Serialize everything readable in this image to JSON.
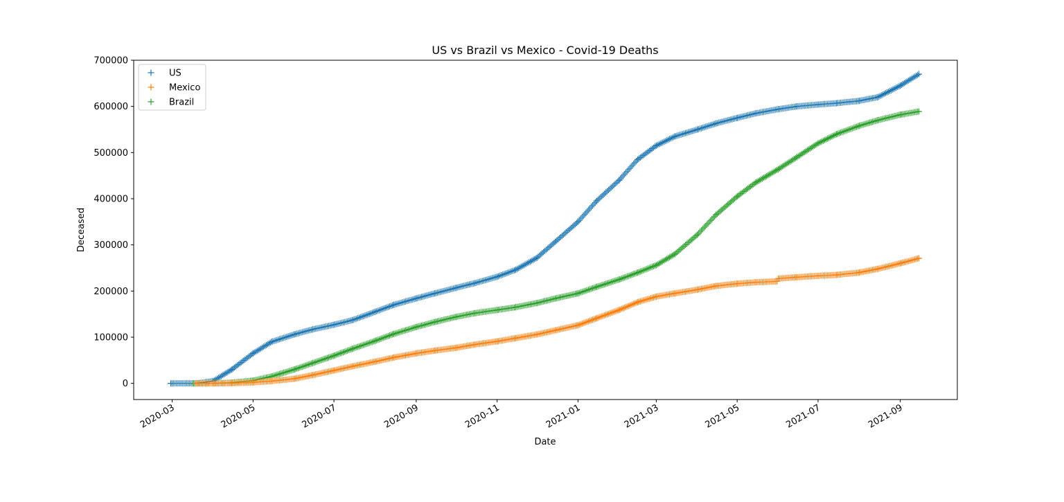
{
  "chart_data": {
    "type": "scatter",
    "marker": "+",
    "title": "US vs Brazil vs Mexico - Covid-19 Deaths",
    "xlabel": "Date",
    "ylabel": "Deceased",
    "x_start": "2020-02-29",
    "x_end": "2021-09-15",
    "xlim": [
      "2020-02-01",
      "2021-10-14"
    ],
    "ylim": [
      -35000,
      700000
    ],
    "x_ticks": [
      "2020-03",
      "2020-05",
      "2020-07",
      "2020-09",
      "2020-11",
      "2021-01",
      "2021-03",
      "2021-05",
      "2021-07",
      "2021-09"
    ],
    "y_ticks": [
      0,
      100000,
      200000,
      300000,
      400000,
      500000,
      600000,
      700000
    ],
    "y_tick_labels": [
      "0",
      "100000",
      "200000",
      "300000",
      "400000",
      "500000",
      "600000",
      "700000"
    ],
    "grid": false,
    "legend_position": "top-left",
    "series": [
      {
        "name": "US",
        "color": "#1f77b4",
        "points": [
          [
            "2020-02-29",
            1
          ],
          [
            "2020-03-20",
            200
          ],
          [
            "2020-04-01",
            5000
          ],
          [
            "2020-04-15",
            30000
          ],
          [
            "2020-05-01",
            65000
          ],
          [
            "2020-05-15",
            90000
          ],
          [
            "2020-06-01",
            106000
          ],
          [
            "2020-06-15",
            117000
          ],
          [
            "2020-07-01",
            127000
          ],
          [
            "2020-07-15",
            137000
          ],
          [
            "2020-08-01",
            155000
          ],
          [
            "2020-08-15",
            170000
          ],
          [
            "2020-09-01",
            184000
          ],
          [
            "2020-09-15",
            195000
          ],
          [
            "2020-10-01",
            207000
          ],
          [
            "2020-10-15",
            217000
          ],
          [
            "2020-11-01",
            231000
          ],
          [
            "2020-11-15",
            246000
          ],
          [
            "2020-12-01",
            272000
          ],
          [
            "2020-12-15",
            307000
          ],
          [
            "2021-01-01",
            350000
          ],
          [
            "2021-01-15",
            395000
          ],
          [
            "2021-02-01",
            440000
          ],
          [
            "2021-02-15",
            485000
          ],
          [
            "2021-03-01",
            515000
          ],
          [
            "2021-03-15",
            535000
          ],
          [
            "2021-04-01",
            550000
          ],
          [
            "2021-04-15",
            563000
          ],
          [
            "2021-05-01",
            575000
          ],
          [
            "2021-05-15",
            585000
          ],
          [
            "2021-06-01",
            594000
          ],
          [
            "2021-06-15",
            600000
          ],
          [
            "2021-07-01",
            604000
          ],
          [
            "2021-07-15",
            607000
          ],
          [
            "2021-08-01",
            612000
          ],
          [
            "2021-08-15",
            620000
          ],
          [
            "2021-09-01",
            645000
          ],
          [
            "2021-09-15",
            670000
          ]
        ]
      },
      {
        "name": "Mexico",
        "color": "#ff7f0e",
        "points": [
          [
            "2020-03-19",
            0
          ],
          [
            "2020-04-01",
            30
          ],
          [
            "2020-04-15",
            500
          ],
          [
            "2020-05-01",
            2000
          ],
          [
            "2020-05-15",
            5000
          ],
          [
            "2020-06-01",
            10000
          ],
          [
            "2020-06-15",
            18000
          ],
          [
            "2020-07-01",
            28000
          ],
          [
            "2020-07-15",
            37000
          ],
          [
            "2020-08-01",
            47000
          ],
          [
            "2020-08-15",
            56000
          ],
          [
            "2020-09-01",
            65000
          ],
          [
            "2020-09-15",
            71000
          ],
          [
            "2020-10-01",
            77000
          ],
          [
            "2020-10-15",
            84000
          ],
          [
            "2020-11-01",
            91000
          ],
          [
            "2020-11-15",
            98000
          ],
          [
            "2020-12-01",
            106000
          ],
          [
            "2020-12-15",
            115000
          ],
          [
            "2021-01-01",
            126000
          ],
          [
            "2021-01-15",
            141000
          ],
          [
            "2021-02-01",
            159000
          ],
          [
            "2021-02-15",
            176000
          ],
          [
            "2021-03-01",
            188000
          ],
          [
            "2021-03-15",
            195000
          ],
          [
            "2021-04-01",
            203000
          ],
          [
            "2021-04-15",
            211000
          ],
          [
            "2021-05-01",
            216000
          ],
          [
            "2021-05-15",
            219000
          ],
          [
            "2021-05-31",
            221000
          ],
          [
            "2021-06-01",
            227000
          ],
          [
            "2021-06-15",
            230000
          ],
          [
            "2021-07-01",
            233000
          ],
          [
            "2021-07-15",
            235000
          ],
          [
            "2021-08-01",
            240000
          ],
          [
            "2021-08-15",
            248000
          ],
          [
            "2021-09-01",
            260000
          ],
          [
            "2021-09-15",
            271000
          ]
        ]
      },
      {
        "name": "Brazil",
        "color": "#2ca02c",
        "points": [
          [
            "2020-03-17",
            0
          ],
          [
            "2020-04-01",
            200
          ],
          [
            "2020-04-15",
            1500
          ],
          [
            "2020-05-01",
            6000
          ],
          [
            "2020-05-15",
            15000
          ],
          [
            "2020-06-01",
            30000
          ],
          [
            "2020-06-15",
            44000
          ],
          [
            "2020-07-01",
            60000
          ],
          [
            "2020-07-15",
            75000
          ],
          [
            "2020-08-01",
            92000
          ],
          [
            "2020-08-15",
            107000
          ],
          [
            "2020-09-01",
            122000
          ],
          [
            "2020-09-15",
            133000
          ],
          [
            "2020-10-01",
            144000
          ],
          [
            "2020-10-15",
            152000
          ],
          [
            "2020-11-01",
            159000
          ],
          [
            "2020-11-15",
            165000
          ],
          [
            "2020-12-01",
            174000
          ],
          [
            "2020-12-15",
            184000
          ],
          [
            "2021-01-01",
            195000
          ],
          [
            "2021-01-15",
            209000
          ],
          [
            "2021-02-01",
            225000
          ],
          [
            "2021-02-15",
            240000
          ],
          [
            "2021-03-01",
            256000
          ],
          [
            "2021-03-15",
            280000
          ],
          [
            "2021-04-01",
            322000
          ],
          [
            "2021-04-15",
            365000
          ],
          [
            "2021-05-01",
            405000
          ],
          [
            "2021-05-15",
            435000
          ],
          [
            "2021-06-01",
            464000
          ],
          [
            "2021-06-15",
            490000
          ],
          [
            "2021-07-01",
            520000
          ],
          [
            "2021-07-15",
            540000
          ],
          [
            "2021-08-01",
            558000
          ],
          [
            "2021-08-15",
            570000
          ],
          [
            "2021-09-01",
            582000
          ],
          [
            "2021-09-15",
            589000
          ]
        ]
      }
    ]
  }
}
